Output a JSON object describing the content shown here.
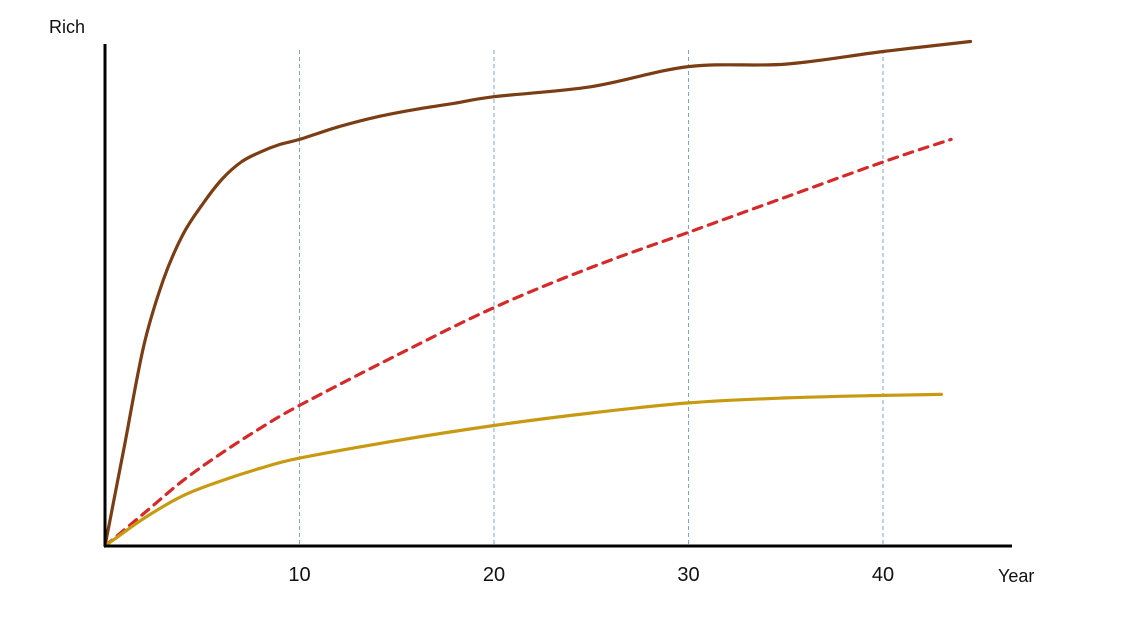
{
  "chart_data": {
    "type": "line",
    "xlabel": "Year",
    "ylabel": "Rich",
    "xlim": [
      0,
      46
    ],
    "ylim": [
      0,
      100
    ],
    "x_ticks": [
      10,
      20,
      30,
      40
    ],
    "x_tick_labels": [
      "10",
      "20",
      "30",
      "40"
    ],
    "grid": {
      "vertical": true,
      "horizontal": false,
      "style": "dashed"
    },
    "series": [
      {
        "color": "#7a3d14",
        "style": "solid",
        "points": [
          [
            0,
            0
          ],
          [
            1,
            20
          ],
          [
            2,
            40
          ],
          [
            3,
            53
          ],
          [
            4,
            62
          ],
          [
            5,
            68
          ],
          [
            6,
            73
          ],
          [
            7,
            76.5
          ],
          [
            8,
            78.5
          ],
          [
            9,
            80
          ],
          [
            10,
            81
          ],
          [
            12,
            83.5
          ],
          [
            14,
            85.5
          ],
          [
            16,
            87
          ],
          [
            18,
            88.2
          ],
          [
            20,
            89.5
          ],
          [
            25,
            91.5
          ],
          [
            30,
            95.5
          ],
          [
            35,
            96
          ],
          [
            40,
            98.5
          ],
          [
            44.5,
            100.5
          ]
        ]
      },
      {
        "color": "#d42a2a",
        "style": "dashed",
        "points": [
          [
            0,
            0
          ],
          [
            2,
            6.5
          ],
          [
            4,
            13
          ],
          [
            6,
            18.5
          ],
          [
            8,
            23.5
          ],
          [
            10,
            28
          ],
          [
            15,
            38
          ],
          [
            20,
            47.5
          ],
          [
            25,
            55.5
          ],
          [
            30,
            62.5
          ],
          [
            35,
            69.5
          ],
          [
            40,
            76.5
          ],
          [
            43.5,
            81
          ]
        ]
      },
      {
        "color": "#c89a12",
        "style": "solid",
        "points": [
          [
            0,
            0
          ],
          [
            2,
            5.5
          ],
          [
            4,
            10
          ],
          [
            6,
            13
          ],
          [
            8,
            15.5
          ],
          [
            10,
            17.5
          ],
          [
            15,
            21
          ],
          [
            20,
            24
          ],
          [
            25,
            26.5
          ],
          [
            30,
            28.5
          ],
          [
            35,
            29.5
          ],
          [
            40,
            30
          ],
          [
            43,
            30.2
          ]
        ]
      }
    ]
  }
}
